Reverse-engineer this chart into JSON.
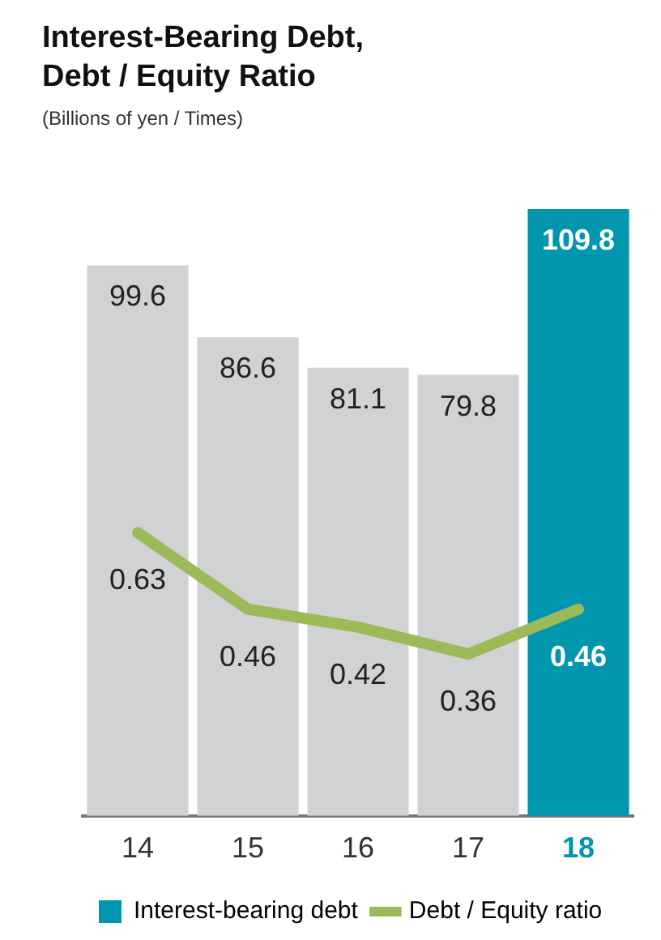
{
  "chart_data": {
    "type": "bar",
    "title": "Interest-Bearing Debt, Debt / Equity Ratio",
    "subtitle": "(Billions of yen / Times)",
    "categories": [
      "14",
      "15",
      "16",
      "17",
      "18"
    ],
    "series": [
      {
        "name": "Interest-bearing debt",
        "color": "#0096ad",
        "colors": [
          "#d1d2d4",
          "#d1d2d4",
          "#d1d2d4",
          "#d1d2d4",
          "#0096ad"
        ],
        "values": [
          99.6,
          86.6,
          81.1,
          79.8,
          109.8
        ]
      },
      {
        "name": "Debt / Equity ratio",
        "type": "line",
        "axis": "y2",
        "color": "#9bbb59",
        "values": [
          0.63,
          0.46,
          0.42,
          0.36,
          0.46
        ]
      }
    ],
    "ylim": [
      0,
      109.8
    ],
    "y2lim": [
      0,
      1.35
    ],
    "data_labels": true,
    "legend": "bottom",
    "grid": false,
    "marker": "none",
    "tick_labels": "x"
  }
}
